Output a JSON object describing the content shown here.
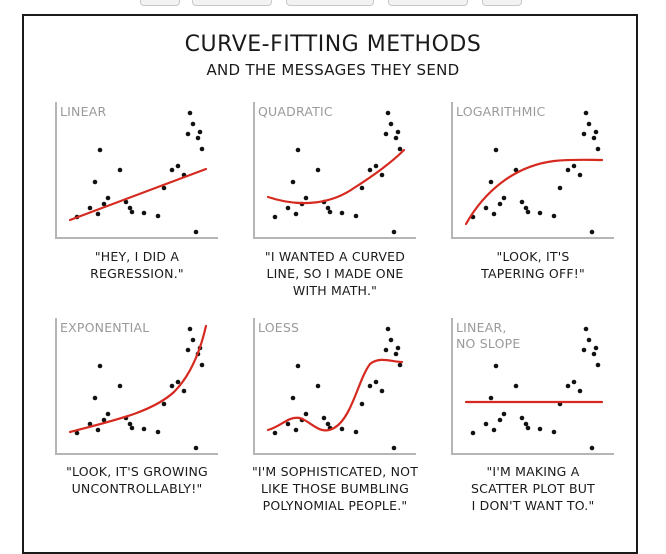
{
  "comic": {
    "title": "CURVE-FITTING METHODS",
    "subtitle": "AND THE MESSAGES THEY SEND"
  },
  "colors": {
    "curve": "#d62a20",
    "ink": "#111111",
    "axis": "#b5b5b5"
  },
  "panels": [
    {
      "label": "LINEAR",
      "caption": "\"HEY, I DID A\nREGRESSION.\"",
      "curve": "linear"
    },
    {
      "label": "QUADRATIC",
      "caption": "\"I WANTED A CURVED\nLINE, SO I MADE ONE\nWITH MATH.\"",
      "curve": "quadratic"
    },
    {
      "label": "LOGARITHMIC",
      "caption": "\"LOOK, IT'S\nTAPERING OFF!\"",
      "curve": "logarithmic"
    },
    {
      "label": "EXPONENTIAL",
      "caption": "\"LOOK, IT'S GROWING\nUNCONTROLLABLY!\"",
      "curve": "exponential"
    },
    {
      "label": "LOESS",
      "caption": "\"I'M SOPHISTICATED, NOT\nLIKE THOSE BUMBLING\nPOLYNOMIAL PEOPLE.\"",
      "curve": "loess"
    },
    {
      "label": "LINEAR,\nNO SLOPE",
      "caption": "\"I'M MAKING A\nSCATTER PLOT BUT\nI DON'T WANT TO.\"",
      "curve": "flat"
    }
  ]
}
